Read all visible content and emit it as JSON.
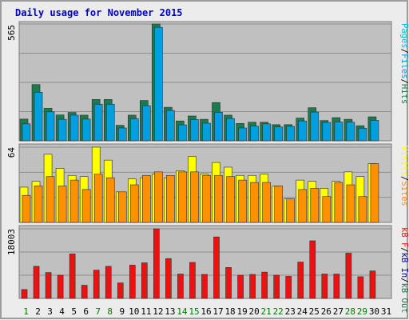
{
  "title": "Daily usage for November 2015",
  "colors": {
    "background": "#ececec",
    "frame_border": "#9c9c9c",
    "panel_bg": "#c0c0c0",
    "panel_border": "#7a7a7a",
    "gridline": "#8e8e8e",
    "title": "#0000c0",
    "hits": "#1b7a4e",
    "files": "#00a0e0",
    "pages": "#00c0f0",
    "visits": "#ffff00",
    "sites": "#ff9000",
    "kb_out": "#207850",
    "kb_in": "#0000c0",
    "kb": "#f01010",
    "day_green": "#007800",
    "day_black": "#000000",
    "bar_edge": "#2c2c2c"
  },
  "chart_data": [
    {
      "type": "bar",
      "panel": "hits-files-pages",
      "y_max_label": "565",
      "legend": [
        {
          "text": "Pages",
          "color": "#00c0f0"
        },
        {
          "text": "/",
          "color": "#000000"
        },
        {
          "text": "Files",
          "color": "#00a0e0"
        },
        {
          "text": "/",
          "color": "#000000"
        },
        {
          "text": "Hits",
          "color": "#1b7a4e"
        }
      ],
      "ylim": [
        0,
        565
      ],
      "categories": [
        "1",
        "2",
        "3",
        "4",
        "5",
        "6",
        "7",
        "8",
        "9",
        "10",
        "11",
        "12",
        "13",
        "14",
        "15",
        "16",
        "17",
        "18",
        "19",
        "20",
        "21",
        "22",
        "23",
        "24",
        "25",
        "26",
        "27",
        "28",
        "29",
        "30",
        "31"
      ],
      "series": [
        {
          "key": "hits",
          "values": [
            105,
            272,
            157,
            125,
            137,
            124,
            200,
            200,
            75,
            124,
            195,
            565,
            162,
            96,
            120,
            104,
            185,
            124,
            84,
            90,
            90,
            78,
            78,
            110,
            160,
            98,
            112,
            104,
            73,
            116,
            null
          ]
        },
        {
          "key": "files",
          "values": [
            82,
            235,
            140,
            104,
            124,
            105,
            177,
            177,
            62,
            107,
            170,
            549,
            147,
            77,
            103,
            85,
            138,
            108,
            62,
            71,
            82,
            67,
            70,
            96,
            139,
            89,
            91,
            90,
            61,
            99,
            null
          ]
        }
      ]
    },
    {
      "type": "bar",
      "panel": "visits-sites",
      "y_max_label": "64",
      "legend": [
        {
          "text": "Visits",
          "color": "#ffff00"
        },
        {
          "text": "/",
          "color": "#000000"
        },
        {
          "text": "Sites",
          "color": "#ff9000"
        }
      ],
      "ylim": [
        0,
        64
      ],
      "categories": [
        "1",
        "2",
        "3",
        "4",
        "5",
        "6",
        "7",
        "8",
        "9",
        "10",
        "11",
        "12",
        "13",
        "14",
        "15",
        "16",
        "17",
        "18",
        "19",
        "20",
        "21",
        "22",
        "23",
        "24",
        "25",
        "26",
        "27",
        "28",
        "29",
        "30",
        "31"
      ],
      "series": [
        {
          "key": "visits",
          "values": [
            30,
            35,
            58,
            46,
            40,
            39,
            64,
            53,
            26,
            37,
            38,
            41,
            38,
            44,
            56,
            41,
            51,
            47,
            40,
            40,
            41,
            31,
            20,
            36,
            35,
            29,
            35,
            43,
            39,
            50,
            null
          ]
        },
        {
          "key": "sites",
          "values": [
            23,
            31,
            39,
            31,
            36,
            28,
            41,
            38,
            26,
            32,
            40,
            43,
            40,
            43,
            43,
            40,
            40,
            39,
            36,
            34,
            34,
            31,
            20,
            28,
            29,
            22,
            34,
            32,
            22,
            50,
            null
          ]
        }
      ]
    },
    {
      "type": "bar",
      "panel": "kb",
      "y_max_label": "18003",
      "legend": [
        {
          "text": "kB F",
          "color": "#f01010"
        },
        {
          "text": "/",
          "color": "#000000"
        },
        {
          "text": "kB In",
          "color": "#0000c0"
        },
        {
          "text": "/",
          "color": "#000000"
        },
        {
          "text": "kB Out",
          "color": "#207850"
        }
      ],
      "ylim": [
        0,
        18003
      ],
      "categories": [
        "1",
        "2",
        "3",
        "4",
        "5",
        "6",
        "7",
        "8",
        "9",
        "10",
        "11",
        "12",
        "13",
        "14",
        "15",
        "16",
        "17",
        "18",
        "19",
        "20",
        "21",
        "22",
        "23",
        "24",
        "25",
        "26",
        "27",
        "28",
        "29",
        "30",
        "31"
      ],
      "series": [
        {
          "key": "kb",
          "values": [
            2300,
            8300,
            6700,
            6000,
            11500,
            3400,
            7300,
            8300,
            4000,
            8600,
            9200,
            18003,
            10300,
            6300,
            9300,
            6200,
            15900,
            8000,
            6000,
            6200,
            6800,
            6000,
            5700,
            9400,
            14900,
            6300,
            6300,
            11700,
            5600,
            7100,
            null
          ]
        }
      ]
    }
  ],
  "day_labels": [
    {
      "text": "1",
      "color": "#007800"
    },
    {
      "text": "2",
      "color": "#000000"
    },
    {
      "text": "3",
      "color": "#000000"
    },
    {
      "text": "4",
      "color": "#000000"
    },
    {
      "text": "5",
      "color": "#000000"
    },
    {
      "text": "6",
      "color": "#000000"
    },
    {
      "text": "7",
      "color": "#007800"
    },
    {
      "text": "8",
      "color": "#007800"
    },
    {
      "text": "9",
      "color": "#000000"
    },
    {
      "text": "10",
      "color": "#000000"
    },
    {
      "text": "11",
      "color": "#000000"
    },
    {
      "text": "12",
      "color": "#000000"
    },
    {
      "text": "13",
      "color": "#000000"
    },
    {
      "text": "14",
      "color": "#007800"
    },
    {
      "text": "15",
      "color": "#007800"
    },
    {
      "text": "16",
      "color": "#000000"
    },
    {
      "text": "17",
      "color": "#000000"
    },
    {
      "text": "18",
      "color": "#000000"
    },
    {
      "text": "19",
      "color": "#000000"
    },
    {
      "text": "20",
      "color": "#000000"
    },
    {
      "text": "21",
      "color": "#007800"
    },
    {
      "text": "22",
      "color": "#007800"
    },
    {
      "text": "23",
      "color": "#000000"
    },
    {
      "text": "24",
      "color": "#000000"
    },
    {
      "text": "25",
      "color": "#000000"
    },
    {
      "text": "26",
      "color": "#000000"
    },
    {
      "text": "27",
      "color": "#000000"
    },
    {
      "text": "28",
      "color": "#007800"
    },
    {
      "text": "29",
      "color": "#007800"
    },
    {
      "text": "30",
      "color": "#000000"
    },
    {
      "text": "31",
      "color": "#000000"
    }
  ]
}
